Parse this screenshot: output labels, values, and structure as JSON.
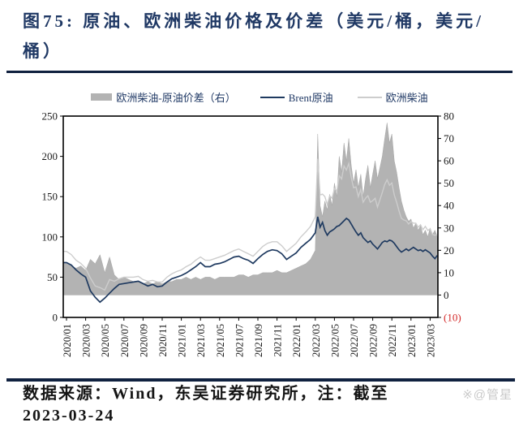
{
  "page": {
    "title": "图75:  原油、欧洲柴油价格及价差（美元/桶，美元/桶）"
  },
  "legend": [
    {
      "label": "欧洲柴油-原油价差（右）",
      "type": "bar",
      "color": "#b3b3b3"
    },
    {
      "label": "Brent原油",
      "type": "line",
      "color": "#1f3a60"
    },
    {
      "label": "欧洲柴油",
      "type": "line",
      "color": "#cdcdcd"
    }
  ],
  "footer": {
    "note": "数据来源：Wind，东吴证券研究所，注：截至",
    "note_line2": "2023-03-24",
    "watermark": "※@管星"
  },
  "chart_data": {
    "type": "combo (area bars + lines)",
    "title": "原油、欧洲柴油价格及价差（美元/桶，美元/桶）",
    "x_axis": {
      "tick_labels": [
        "2020/01",
        "2020/03",
        "2020/05",
        "2020/07",
        "2020/09",
        "2020/11",
        "2021/01",
        "2021/03",
        "2021/05",
        "2021/07",
        "2021/09",
        "2021/11",
        "2022/01",
        "2022/03",
        "2022/05",
        "2022/07",
        "2022/09",
        "2022/11",
        "2023/01",
        "2023/03"
      ],
      "tick_months": [
        0,
        2,
        4,
        6,
        8,
        10,
        12,
        14,
        16,
        18,
        20,
        22,
        24,
        26,
        28,
        30,
        32,
        34,
        36,
        38
      ],
      "end_month": 38.75
    },
    "y_left": {
      "ticks": [
        0,
        50,
        100,
        150,
        200,
        250
      ],
      "range": [
        0,
        250
      ],
      "color": "#1a1a1a"
    },
    "y_right": {
      "tick_labels": [
        "(10)",
        "0",
        "10",
        "20",
        "30",
        "40",
        "50",
        "60",
        "70",
        "80"
      ],
      "tick_values": [
        -10,
        0,
        10,
        20,
        30,
        40,
        50,
        60,
        70,
        80
      ],
      "range": [
        -10,
        80
      ],
      "color": "#1a1a1a",
      "negative_color": "#d42a2a"
    },
    "grid": "off",
    "legend_position": "top-center",
    "series": [
      {
        "name": "欧洲柴油-原油价差（右）",
        "axis": "right",
        "type": "area",
        "color": "#b3b3b3",
        "baseline": 0,
        "segments": [
          {
            "start_month": 0,
            "step_months": 0.5,
            "values": [
              14,
              13,
              12,
              13,
              11,
              16,
              14,
              18,
              10,
              17,
              9,
              7,
              8,
              7,
              6,
              6,
              5,
              6,
              5,
              6,
              5,
              6,
              6,
              7,
              7,
              8,
              7,
              8,
              7,
              8,
              8,
              7,
              8,
              8,
              8,
              8,
              9,
              9,
              8,
              9,
              9,
              10,
              10,
              10,
              11,
              10,
              10,
              11,
              12,
              13,
              14,
              16
            ]
          },
          {
            "start_month": 26,
            "step_months": 0.25,
            "values": [
              20,
              72,
              40,
              35,
              42,
              38,
              45,
              40,
              50,
              44,
              62,
              55,
              68,
              60,
              70,
              58,
              50,
              56,
              48,
              54,
              44,
              52,
              58,
              48,
              54,
              60,
              52,
              57,
              62,
              70,
              77,
              68,
              72,
              60,
              55,
              48,
              42,
              38,
              35,
              33,
              34,
              30,
              32,
              29,
              31,
              27,
              29,
              26,
              30,
              27,
              29,
              26
            ]
          }
        ]
      },
      {
        "name": "欧洲柴油",
        "axis": "left",
        "type": "line",
        "color": "#cdcdcd",
        "width": 1.4,
        "segments": [
          {
            "start_month": 0,
            "step_months": 0.5,
            "values": [
              82,
              78,
              71,
              67,
              61,
              49,
              39,
              37,
              34,
              47,
              45,
              48,
              50,
              50,
              50,
              51,
              47,
              45,
              46,
              44,
              44,
              50,
              54,
              57,
              59,
              63,
              66,
              71,
              75,
              71,
              71,
              73,
              75,
              77,
              80,
              83,
              85,
              82,
              79,
              76,
              82,
              88,
              92,
              94,
              94,
              89,
              82,
              87,
              92,
              100,
              106,
              113
            ]
          },
          {
            "start_month": 26,
            "step_months": 0.25,
            "values": [
              125,
              197,
              152,
              153,
              150,
              140,
              151,
              148,
              160,
              157,
              176,
              172,
              188,
              183,
              191,
              174,
              161,
              162,
              150,
              159,
              143,
              148,
              151,
              143,
              145,
              148,
              137,
              146,
              155,
              165,
              171,
              164,
              167,
              152,
              143,
              132,
              123,
              121,
              120,
              116,
              119,
              117,
              117,
              112,
              115,
              109,
              113,
              108,
              110,
              103,
              102,
              103
            ]
          }
        ]
      },
      {
        "name": "Brent原油",
        "axis": "left",
        "type": "line",
        "color": "#1f3a60",
        "width": 1.7,
        "segments": [
          {
            "start_month": 0,
            "step_months": 0.5,
            "values": [
              68,
              65,
              59,
              54,
              50,
              33,
              25,
              19,
              24,
              30,
              36,
              41,
              42,
              43,
              44,
              45,
              42,
              39,
              41,
              38,
              39,
              44,
              48,
              50,
              52,
              55,
              59,
              63,
              68,
              63,
              63,
              66,
              67,
              69,
              72,
              75,
              76,
              73,
              71,
              67,
              73,
              78,
              82,
              84,
              83,
              79,
              72,
              76,
              80,
              87,
              92,
              97
            ]
          },
          {
            "start_month": 26,
            "step_months": 0.25,
            "values": [
              105,
              125,
              112,
              118,
              108,
              102,
              106,
              108,
              110,
              113,
              114,
              117,
              120,
              123,
              121,
              116,
              111,
              106,
              102,
              105,
              99,
              96,
              93,
              95,
              91,
              88,
              85,
              89,
              93,
              95,
              94,
              96,
              95,
              92,
              88,
              84,
              81,
              83,
              85,
              83,
              85,
              87,
              85,
              83,
              84,
              82,
              84,
              82,
              80,
              76,
              73,
              77
            ]
          }
        ]
      }
    ]
  }
}
